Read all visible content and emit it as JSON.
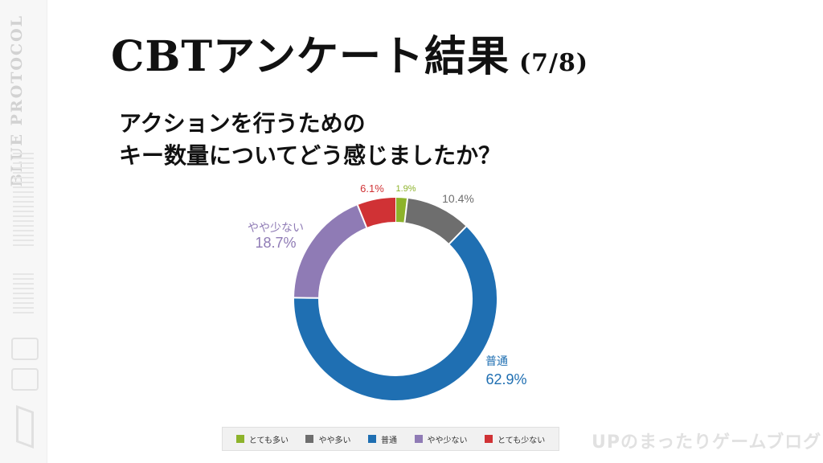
{
  "sidebar": {
    "brand": "BLUE PROTOCOL"
  },
  "header": {
    "title": "CBTアンケート結果",
    "page_indicator": "(7/8)"
  },
  "question": {
    "line1": "アクションを行うための",
    "line2": "キー数量についてどう感じましたか？"
  },
  "chart_data": {
    "type": "pie",
    "donut": true,
    "categories": [
      "とても多い",
      "やや多い",
      "普通",
      "やや少ない",
      "とても少ない"
    ],
    "values": [
      1.9,
      10.4,
      62.9,
      18.7,
      6.1
    ],
    "value_labels": [
      "1.9%",
      "10.4%",
      "62.9%",
      "18.7%",
      "6.1%"
    ],
    "colors": [
      "#8db32b",
      "#6e6e6e",
      "#1f6fb2",
      "#8f7bb5",
      "#d03235"
    ],
    "slice_labels": {
      "normal_name": "普通",
      "slightly_few_name": "やや少ない"
    },
    "legend_placement": "bottom"
  },
  "watermark": "UPのまったりゲームブログ"
}
